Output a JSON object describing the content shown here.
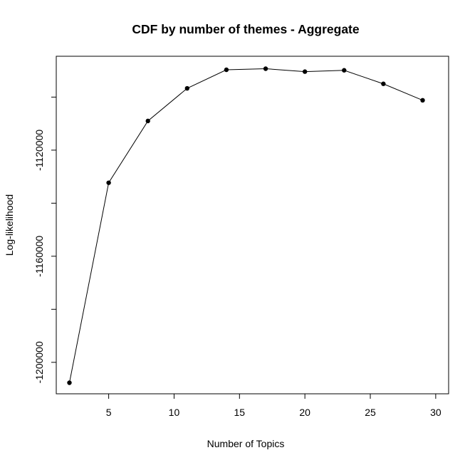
{
  "chart_data": {
    "type": "line",
    "title": "CDF by number of themes - Aggregate",
    "xlabel": "Number of Topics",
    "ylabel": "Log-likelihood",
    "x": [
      2,
      5,
      8,
      11,
      14,
      17,
      20,
      23,
      26,
      29
    ],
    "series": [
      {
        "values": [
          -1207700,
          -1132300,
          -1109000,
          -1096700,
          -1089700,
          -1089300,
          -1090400,
          -1089900,
          -1095000,
          -1101200
        ]
      }
    ],
    "xlim": [
      2,
      29
    ],
    "ylim": [
      -1207700,
      -1089300
    ],
    "xticks": [
      5,
      10,
      15,
      20,
      25,
      30
    ],
    "xtick_labels": [
      "5",
      "10",
      "15",
      "20",
      "25",
      "30"
    ],
    "yticks": [
      -1200000,
      -1180000,
      -1160000,
      -1140000,
      -1120000,
      -1100000
    ],
    "ytick_labels": [
      "-1200000",
      "",
      "-1160000",
      "",
      "-1120000",
      ""
    ],
    "grid": false,
    "legend": "none",
    "marker": "filled-circle",
    "line_color": "#000000"
  }
}
